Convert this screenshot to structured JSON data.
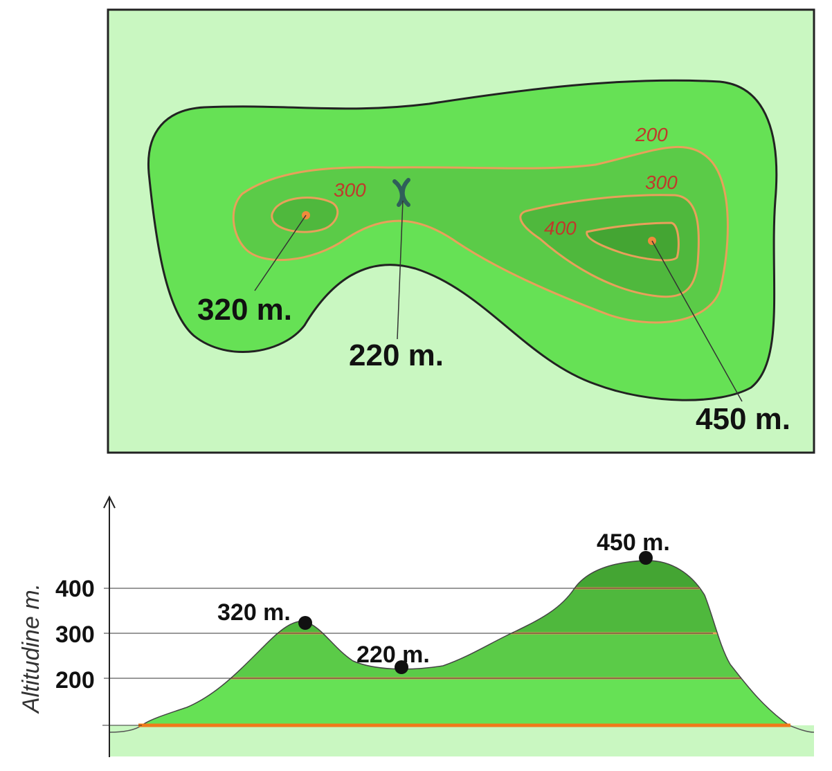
{
  "colors": {
    "background": "#c9f7c1",
    "band_low": "#66e155",
    "band_mid": "#5bcb48",
    "band_high": "#4fb83d",
    "band_top": "#44a533",
    "contour_line": "#e8a05a",
    "outline": "#222222",
    "label_red": "#c0392b",
    "peak_dot": "#f08a3c"
  },
  "map": {
    "contour_labels": {
      "c200": "200",
      "c300_left": "300",
      "c300_right": "300",
      "c400": "400"
    },
    "elevations": {
      "left_peak": "320 m.",
      "pass": "220 m.",
      "right_peak": "450 m."
    },
    "pass_icon": "pass-cross-icon"
  },
  "profile": {
    "axis_title": "Altitudine m.",
    "ticks": [
      "400",
      "300",
      "200"
    ],
    "labels": {
      "left_peak": "320 m.",
      "pass": "220 m.",
      "right_peak": "450 m."
    }
  }
}
